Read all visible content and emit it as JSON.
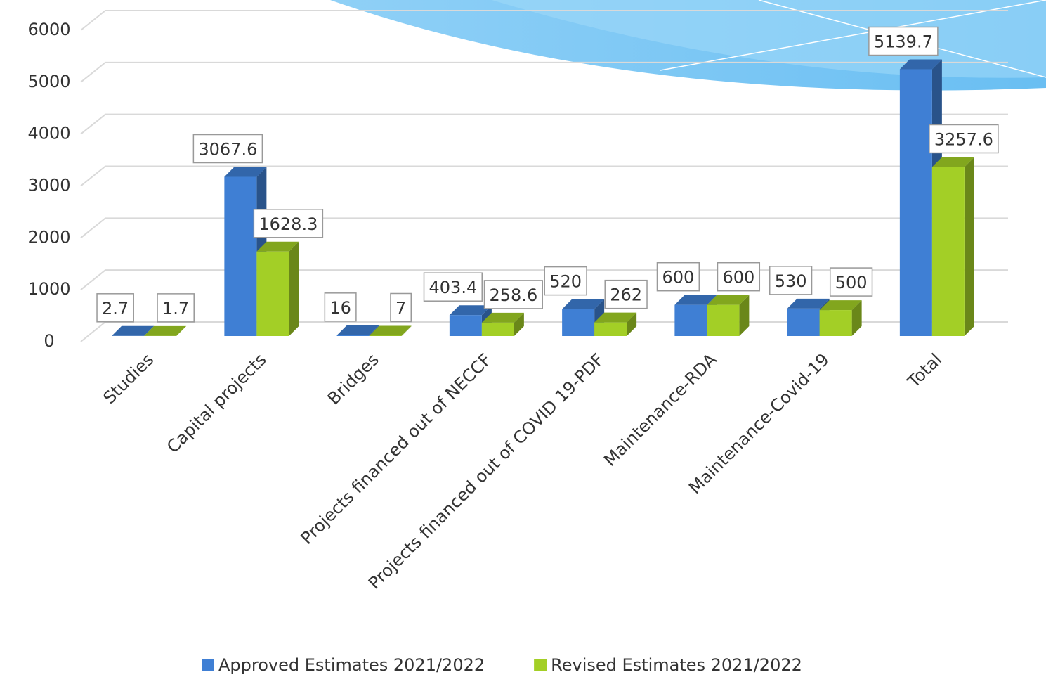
{
  "chart_data": {
    "type": "bar3d",
    "categories": [
      "Studies",
      "Capital projects",
      "Bridges",
      "Projects financed out of NECCF",
      "Projects financed out of COVID 19-PDF",
      "Maintenance-RDA",
      "Maintenance-Covid-19",
      "Total"
    ],
    "series": [
      {
        "name": "Approved Estimates 2021/2022",
        "color": "#3f7fd4",
        "values": [
          2.7,
          3067.6,
          16,
          403.4,
          520,
          600,
          530,
          5139.7
        ]
      },
      {
        "name": "Revised Estimates 2021/2022",
        "color": "#a3cf26",
        "values": [
          1.7,
          1628.3,
          7,
          258.6,
          262,
          600,
          500,
          3257.6
        ]
      }
    ],
    "ylim": [
      0,
      6000
    ],
    "yticks": [
      0,
      1000,
      2000,
      3000,
      4000,
      5000,
      6000
    ],
    "grid": true,
    "legend": "bottom"
  }
}
